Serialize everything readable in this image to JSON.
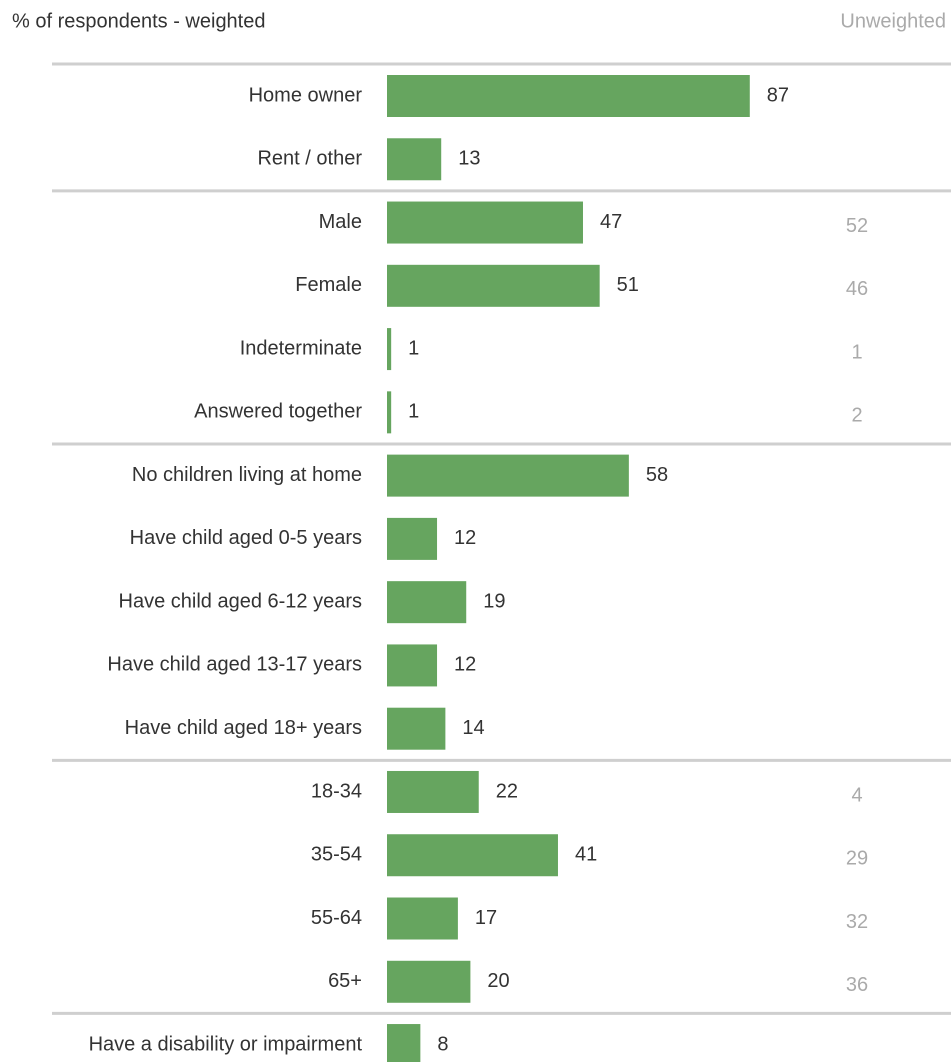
{
  "chart_data": {
    "type": "bar",
    "title": "% of respondents - weighted",
    "unweighted_title": "Unweighted",
    "color": "#66a55f",
    "groups": [
      {
        "categories": [
          "Home owner",
          "Rent / other"
        ],
        "values": [
          87,
          13
        ]
      },
      {
        "categories": [
          "Male",
          "Female",
          "Indeterminate",
          "Answered together"
        ],
        "values": [
          47,
          51,
          1,
          1
        ],
        "unweighted": [
          52,
          46,
          1,
          2
        ]
      },
      {
        "categories": [
          "No children living at home",
          "Have child aged 0-5 years",
          "Have child aged 6-12 years",
          "Have child aged 13-17 years",
          "Have child aged 18+ years"
        ],
        "values": [
          58,
          12,
          19,
          12,
          14
        ]
      },
      {
        "categories": [
          "18-34",
          "35-54",
          "55-64",
          "65+"
        ],
        "values": [
          22,
          41,
          17,
          20
        ],
        "unweighted": [
          4,
          29,
          32,
          36
        ]
      },
      {
        "categories": [
          "Have a disability or impairment"
        ],
        "values": [
          8
        ]
      }
    ]
  }
}
